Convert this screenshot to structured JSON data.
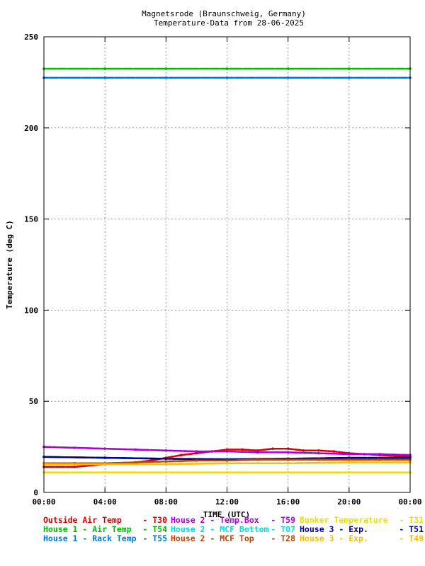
{
  "chart_data": {
    "type": "scatter",
    "title": "Magnetsrode (Braunschweig, Germany)",
    "subtitle": "Temperature-Data from 28-06-2025",
    "xlabel": "TIME (UTC)",
    "ylabel": "Temperature (deg C)",
    "xlim": [
      0,
      24
    ],
    "ylim": [
      0,
      250
    ],
    "x_ticks": [
      {
        "value": 0,
        "label": "00:00"
      },
      {
        "value": 4,
        "label": "04:00"
      },
      {
        "value": 8,
        "label": "08:00"
      },
      {
        "value": 12,
        "label": "12:00"
      },
      {
        "value": 16,
        "label": "16:00"
      },
      {
        "value": 20,
        "label": "20:00"
      },
      {
        "value": 24,
        "label": "00:00"
      }
    ],
    "y_ticks": [
      0,
      50,
      100,
      150,
      200,
      250
    ],
    "grid": true,
    "legend_position": "bottom",
    "series": [
      {
        "name": "Outside Air Temp",
        "code": "T30",
        "color": "#dd0000",
        "x": [
          0,
          2,
          4,
          5,
          6,
          7,
          8,
          9,
          10,
          11,
          12,
          13,
          14,
          15,
          16,
          17,
          18,
          19,
          20,
          21,
          22,
          23,
          24
        ],
        "y": [
          14,
          14,
          15.5,
          16,
          16.5,
          17.5,
          19,
          20.5,
          21.5,
          22.5,
          23.5,
          23.5,
          23,
          24,
          24,
          23,
          23,
          22.5,
          21.5,
          21,
          20.5,
          20,
          19.5
        ]
      },
      {
        "name": "House 2 - Temp.Box",
        "code": "T59",
        "color": "#aa00dd",
        "x": [
          0,
          2,
          4,
          6,
          8,
          10,
          12,
          14,
          16,
          18,
          20,
          22,
          24
        ],
        "y": [
          25,
          24.5,
          24,
          23.5,
          23,
          22.5,
          22.5,
          22,
          22,
          21.5,
          21,
          21,
          20.5
        ]
      },
      {
        "name": "Bunker Temperature",
        "code": "T31",
        "color": "#eedd00",
        "x": [
          0,
          4,
          8,
          12,
          16,
          20,
          24
        ],
        "y": [
          11,
          11,
          11,
          11,
          11,
          11,
          11
        ]
      },
      {
        "name": "House 1 - Air  Temp",
        "code": "T54",
        "color": "#00bb00",
        "x": [
          0,
          4,
          8,
          12,
          16,
          20,
          24
        ],
        "y": [
          232.5,
          232.5,
          232.5,
          232.5,
          232.5,
          232.5,
          232.5
        ]
      },
      {
        "name": "House 2 - MCF Bottom",
        "code": "T07",
        "color": "#00dddd",
        "x": [
          0,
          4,
          8,
          12,
          16,
          20,
          24
        ],
        "y": [
          19.5,
          19,
          18.5,
          18.5,
          18.5,
          18.5,
          18.5
        ]
      },
      {
        "name": "House 3 - Exp.",
        "code": "T51",
        "color": "#000099",
        "x": [
          0,
          4,
          8,
          12,
          16,
          20,
          24
        ],
        "y": [
          19.5,
          19,
          18.5,
          18,
          18.5,
          19,
          19
        ]
      },
      {
        "name": "House 1 - Rack Temp",
        "code": "T55",
        "color": "#0077dd",
        "x": [
          0,
          4,
          8,
          12,
          16,
          20,
          24
        ],
        "y": [
          227.5,
          227.5,
          227.5,
          227.5,
          227.5,
          227.5,
          227.5
        ]
      },
      {
        "name": "House 2 - MCF Top",
        "code": "T28",
        "color": "#bb4400",
        "x": [
          0,
          2,
          4,
          6,
          8,
          10,
          12,
          14,
          16,
          18,
          20,
          22,
          24
        ],
        "y": [
          16,
          16,
          16,
          16.5,
          17,
          17.5,
          17.5,
          18,
          18,
          18,
          18,
          18,
          18
        ]
      },
      {
        "name": "House 3 - Exp.",
        "code": "T49",
        "color": "#ffbb00",
        "x": [
          0,
          4,
          8,
          12,
          16,
          20,
          24
        ],
        "y": [
          15.5,
          15.5,
          15.5,
          16,
          16,
          16.5,
          16.5
        ]
      }
    ]
  }
}
